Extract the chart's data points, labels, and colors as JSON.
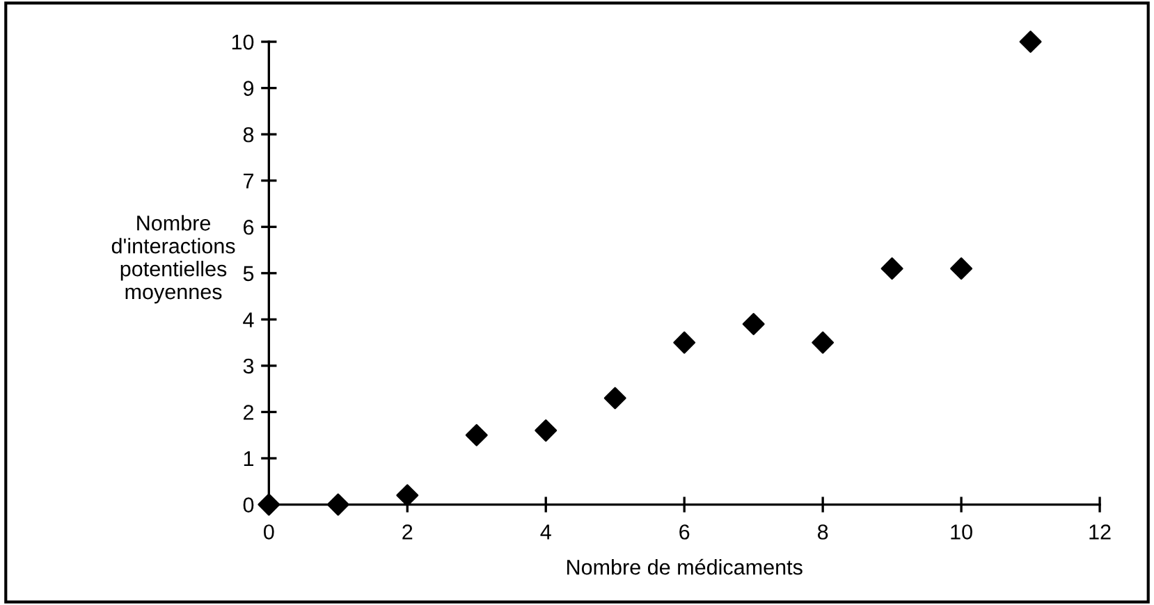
{
  "chart_data": {
    "type": "scatter",
    "xlabel": "Nombre de médicaments",
    "ylabel": "Nombre\nd'interactions\npotentielles\nmoyennes",
    "x": [
      0,
      1,
      2,
      3,
      4,
      5,
      6,
      7,
      8,
      9,
      10,
      11
    ],
    "series": [
      {
        "color": "#000000",
        "values": [
          0,
          0,
          0.2,
          1.5,
          1.6,
          2.3,
          3.5,
          3.9,
          3.5,
          5.1,
          5.1,
          10
        ]
      }
    ],
    "xlim": [
      0,
      12
    ],
    "xticks": [
      0,
      2,
      4,
      6,
      8,
      10,
      12
    ],
    "ylim": [
      0,
      10
    ],
    "yticks": [
      0,
      1,
      2,
      3,
      4,
      5,
      6,
      7,
      8,
      9,
      10
    ],
    "marker": "diamond",
    "grid": false,
    "legend": false
  }
}
